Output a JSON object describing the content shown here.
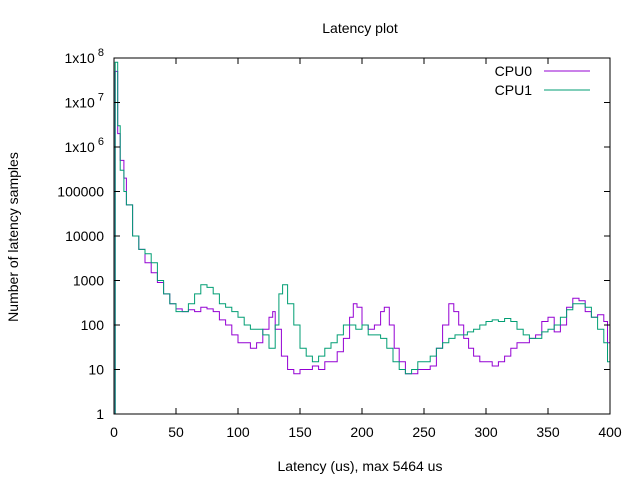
{
  "chart_data": {
    "type": "line",
    "title": "Latency plot",
    "xlabel": "Latency (us), max 5464 us",
    "ylabel": "Number of latency samples",
    "xlim": [
      0,
      400
    ],
    "ylim": [
      1,
      100000000
    ],
    "yscale": "log",
    "grid": false,
    "legend_position": "top-right",
    "x_ticks": [
      "0",
      "50",
      "100",
      "150",
      "200",
      "250",
      "300",
      "350",
      "400"
    ],
    "y_ticks": [
      {
        "value": 1,
        "label": "1"
      },
      {
        "value": 10,
        "label": "10"
      },
      {
        "value": 100,
        "label": "100"
      },
      {
        "value": 1000,
        "label": "1000"
      },
      {
        "value": 10000,
        "label": "10000"
      },
      {
        "value": 100000,
        "label": "100000"
      },
      {
        "value": 1000000,
        "label": "1x10",
        "exp": "6"
      },
      {
        "value": 10000000,
        "label": "1x10",
        "exp": "7"
      },
      {
        "value": 100000000,
        "label": "1x10",
        "exp": "8"
      }
    ],
    "series": [
      {
        "name": "CPU0",
        "color": "#9400d3",
        "points": [
          [
            0,
            1
          ],
          [
            1,
            50000000
          ],
          [
            3,
            2000000
          ],
          [
            5,
            500000
          ],
          [
            8,
            200000
          ],
          [
            10,
            50000
          ],
          [
            15,
            10000
          ],
          [
            20,
            5000
          ],
          [
            25,
            2500
          ],
          [
            30,
            1500
          ],
          [
            35,
            900
          ],
          [
            40,
            500
          ],
          [
            45,
            300
          ],
          [
            50,
            230
          ],
          [
            55,
            200
          ],
          [
            60,
            220
          ],
          [
            65,
            200
          ],
          [
            70,
            250
          ],
          [
            75,
            230
          ],
          [
            80,
            200
          ],
          [
            85,
            130
          ],
          [
            90,
            100
          ],
          [
            95,
            60
          ],
          [
            100,
            40
          ],
          [
            105,
            40
          ],
          [
            110,
            30
          ],
          [
            115,
            40
          ],
          [
            120,
            80
          ],
          [
            125,
            150
          ],
          [
            128,
            200
          ],
          [
            130,
            80
          ],
          [
            135,
            20
          ],
          [
            140,
            10
          ],
          [
            145,
            8
          ],
          [
            150,
            10
          ],
          [
            155,
            10
          ],
          [
            160,
            12
          ],
          [
            165,
            10
          ],
          [
            170,
            15
          ],
          [
            175,
            15
          ],
          [
            180,
            25
          ],
          [
            185,
            50
          ],
          [
            190,
            150
          ],
          [
            193,
            300
          ],
          [
            196,
            250
          ],
          [
            200,
            100
          ],
          [
            205,
            80
          ],
          [
            210,
            100
          ],
          [
            215,
            200
          ],
          [
            218,
            250
          ],
          [
            222,
            100
          ],
          [
            226,
            30
          ],
          [
            230,
            15
          ],
          [
            235,
            8
          ],
          [
            240,
            8
          ],
          [
            245,
            10
          ],
          [
            250,
            10
          ],
          [
            255,
            12
          ],
          [
            260,
            30
          ],
          [
            265,
            100
          ],
          [
            270,
            300
          ],
          [
            274,
            200
          ],
          [
            278,
            100
          ],
          [
            282,
            50
          ],
          [
            286,
            30
          ],
          [
            290,
            20
          ],
          [
            295,
            15
          ],
          [
            300,
            15
          ],
          [
            305,
            12
          ],
          [
            310,
            15
          ],
          [
            315,
            20
          ],
          [
            320,
            30
          ],
          [
            325,
            40
          ],
          [
            330,
            40
          ],
          [
            335,
            50
          ],
          [
            340,
            60
          ],
          [
            345,
            120
          ],
          [
            350,
            150
          ],
          [
            355,
            70
          ],
          [
            360,
            100
          ],
          [
            365,
            250
          ],
          [
            370,
            400
          ],
          [
            375,
            350
          ],
          [
            380,
            200
          ],
          [
            385,
            150
          ],
          [
            390,
            170
          ],
          [
            395,
            120
          ],
          [
            398,
            40
          ],
          [
            400,
            1
          ]
        ]
      },
      {
        "name": "CPU1",
        "color": "#009e73",
        "points": [
          [
            0,
            1
          ],
          [
            1,
            80000000
          ],
          [
            3,
            3000000
          ],
          [
            5,
            300000
          ],
          [
            8,
            100000
          ],
          [
            10,
            50000
          ],
          [
            15,
            10000
          ],
          [
            20,
            5000
          ],
          [
            25,
            4000
          ],
          [
            30,
            2500
          ],
          [
            35,
            1000
          ],
          [
            40,
            500
          ],
          [
            45,
            300
          ],
          [
            50,
            200
          ],
          [
            55,
            200
          ],
          [
            60,
            300
          ],
          [
            65,
            500
          ],
          [
            70,
            800
          ],
          [
            75,
            700
          ],
          [
            80,
            500
          ],
          [
            85,
            300
          ],
          [
            90,
            250
          ],
          [
            95,
            200
          ],
          [
            100,
            150
          ],
          [
            105,
            100
          ],
          [
            110,
            80
          ],
          [
            115,
            80
          ],
          [
            120,
            60
          ],
          [
            125,
            30
          ],
          [
            130,
            100
          ],
          [
            133,
            500
          ],
          [
            136,
            800
          ],
          [
            140,
            300
          ],
          [
            145,
            100
          ],
          [
            150,
            30
          ],
          [
            155,
            20
          ],
          [
            160,
            15
          ],
          [
            165,
            20
          ],
          [
            170,
            30
          ],
          [
            175,
            40
          ],
          [
            180,
            60
          ],
          [
            185,
            100
          ],
          [
            190,
            100
          ],
          [
            195,
            80
          ],
          [
            200,
            100
          ],
          [
            205,
            60
          ],
          [
            210,
            60
          ],
          [
            215,
            50
          ],
          [
            220,
            30
          ],
          [
            225,
            15
          ],
          [
            230,
            10
          ],
          [
            235,
            8
          ],
          [
            240,
            10
          ],
          [
            245,
            15
          ],
          [
            250,
            15
          ],
          [
            255,
            20
          ],
          [
            260,
            30
          ],
          [
            265,
            40
          ],
          [
            270,
            50
          ],
          [
            275,
            60
          ],
          [
            280,
            60
          ],
          [
            285,
            70
          ],
          [
            290,
            80
          ],
          [
            295,
            100
          ],
          [
            300,
            120
          ],
          [
            305,
            130
          ],
          [
            310,
            120
          ],
          [
            315,
            140
          ],
          [
            320,
            120
          ],
          [
            325,
            80
          ],
          [
            330,
            60
          ],
          [
            335,
            50
          ],
          [
            340,
            50
          ],
          [
            345,
            70
          ],
          [
            350,
            80
          ],
          [
            355,
            100
          ],
          [
            360,
            150
          ],
          [
            365,
            220
          ],
          [
            370,
            300
          ],
          [
            375,
            300
          ],
          [
            380,
            250
          ],
          [
            385,
            150
          ],
          [
            390,
            80
          ],
          [
            395,
            40
          ],
          [
            398,
            15
          ],
          [
            400,
            1
          ]
        ]
      }
    ]
  }
}
